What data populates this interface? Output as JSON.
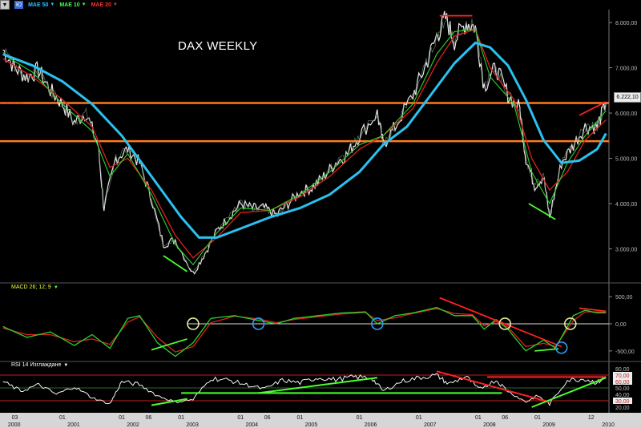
{
  "toolbar": {
    "dropdown_label": "▼",
    "chart_type_label": "Ю",
    "indicators": [
      {
        "name": "MAE 50",
        "color": "#28c4ff"
      },
      {
        "name": "MAE 10",
        "color": "#4cff4c"
      },
      {
        "name": "MAE 20",
        "color": "#ff2a2a"
      }
    ]
  },
  "colors": {
    "background": "#000000",
    "price": "#e8e8e8",
    "ma50": "#2cc0f0",
    "ma10": "#2bd42b",
    "ma20": "#e02020",
    "support": "#ff7a1a",
    "trend_green": "#4cff30",
    "trend_red": "#ff2222",
    "circle_yellow": "#e8e8a0",
    "circle_blue": "#2d9cf0"
  },
  "chart_data": {
    "type": "line",
    "title": "DAX WEEKLY",
    "last_price_label": "6.222,10",
    "price_ticks": [
      "8.000,00",
      "7.000,00",
      "6.000,00",
      "5.000,00",
      "4.000,00",
      "3.000,00"
    ],
    "price_ylim": [
      2300,
      8250
    ],
    "price_path": [
      [
        2000.0,
        7400
      ],
      [
        2000.2,
        7000
      ],
      [
        2000.4,
        6800
      ],
      [
        2000.6,
        6950
      ],
      [
        2000.8,
        6500
      ],
      [
        2001.0,
        6200
      ],
      [
        2001.2,
        5800
      ],
      [
        2001.4,
        6000
      ],
      [
        2001.6,
        5300
      ],
      [
        2001.7,
        3900
      ],
      [
        2001.9,
        5000
      ],
      [
        2002.1,
        5200
      ],
      [
        2002.3,
        4900
      ],
      [
        2002.5,
        4100
      ],
      [
        2002.7,
        3100
      ],
      [
        2002.9,
        3200
      ],
      [
        2003.2,
        2450
      ],
      [
        2003.4,
        2900
      ],
      [
        2003.6,
        3400
      ],
      [
        2003.8,
        3700
      ],
      [
        2004.0,
        4000
      ],
      [
        2004.2,
        3900
      ],
      [
        2004.4,
        3900
      ],
      [
        2004.6,
        3750
      ],
      [
        2004.8,
        4000
      ],
      [
        2005.0,
        4250
      ],
      [
        2005.2,
        4350
      ],
      [
        2005.4,
        4600
      ],
      [
        2005.6,
        4900
      ],
      [
        2005.8,
        5100
      ],
      [
        2006.0,
        5500
      ],
      [
        2006.3,
        6000
      ],
      [
        2006.4,
        5300
      ],
      [
        2006.6,
        5700
      ],
      [
        2006.9,
        6400
      ],
      [
        2007.1,
        7000
      ],
      [
        2007.3,
        7700
      ],
      [
        2007.45,
        8100
      ],
      [
        2007.6,
        7600
      ],
      [
        2007.8,
        8000
      ],
      [
        2007.95,
        7900
      ],
      [
        2008.1,
        6600
      ],
      [
        2008.3,
        7000
      ],
      [
        2008.5,
        6400
      ],
      [
        2008.7,
        6100
      ],
      [
        2008.8,
        5000
      ],
      [
        2008.95,
        4400
      ],
      [
        2009.1,
        4600
      ],
      [
        2009.2,
        3700
      ],
      [
        2009.4,
        4900
      ],
      [
        2009.6,
        5300
      ],
      [
        2009.8,
        5700
      ],
      [
        2010.0,
        5700
      ],
      [
        2010.15,
        6222
      ]
    ],
    "ma50_path": [
      [
        2000.0,
        7300
      ],
      [
        2000.5,
        7050
      ],
      [
        2001.0,
        6700
      ],
      [
        2001.5,
        6200
      ],
      [
        2002.0,
        5500
      ],
      [
        2002.5,
        4600
      ],
      [
        2003.0,
        3700
      ],
      [
        2003.3,
        3250
      ],
      [
        2003.6,
        3250
      ],
      [
        2004.0,
        3450
      ],
      [
        2004.5,
        3700
      ],
      [
        2005.0,
        3900
      ],
      [
        2005.5,
        4200
      ],
      [
        2006.0,
        4700
      ],
      [
        2006.4,
        5300
      ],
      [
        2006.8,
        5700
      ],
      [
        2007.2,
        6400
      ],
      [
        2007.6,
        7100
      ],
      [
        2007.95,
        7550
      ],
      [
        2008.2,
        7450
      ],
      [
        2008.5,
        7050
      ],
      [
        2008.8,
        6300
      ],
      [
        2009.1,
        5400
      ],
      [
        2009.4,
        4900
      ],
      [
        2009.7,
        4950
      ],
      [
        2010.0,
        5200
      ],
      [
        2010.15,
        5550
      ]
    ],
    "ma20_path": [
      [
        2000.0,
        7200
      ],
      [
        2000.5,
        6800
      ],
      [
        2001.0,
        6300
      ],
      [
        2001.5,
        5700
      ],
      [
        2001.8,
        4800
      ],
      [
        2002.1,
        5000
      ],
      [
        2002.5,
        4300
      ],
      [
        2002.9,
        3300
      ],
      [
        2003.2,
        2800
      ],
      [
        2003.6,
        3250
      ],
      [
        2004.0,
        3800
      ],
      [
        2004.5,
        3850
      ],
      [
        2005.0,
        4150
      ],
      [
        2005.5,
        4600
      ],
      [
        2006.0,
        5200
      ],
      [
        2006.4,
        5500
      ],
      [
        2006.9,
        6100
      ],
      [
        2007.3,
        7100
      ],
      [
        2007.6,
        7700
      ],
      [
        2007.95,
        7850
      ],
      [
        2008.2,
        7000
      ],
      [
        2008.6,
        6300
      ],
      [
        2008.9,
        5000
      ],
      [
        2009.2,
        4300
      ],
      [
        2009.5,
        4700
      ],
      [
        2009.8,
        5400
      ],
      [
        2010.15,
        5850
      ]
    ],
    "ma10_path": [
      [
        2000.0,
        7300
      ],
      [
        2000.5,
        6900
      ],
      [
        2001.0,
        6200
      ],
      [
        2001.5,
        5600
      ],
      [
        2001.8,
        4600
      ],
      [
        2002.1,
        5100
      ],
      [
        2002.5,
        4200
      ],
      [
        2002.9,
        3100
      ],
      [
        2003.2,
        2650
      ],
      [
        2003.6,
        3350
      ],
      [
        2004.0,
        3900
      ],
      [
        2004.5,
        3850
      ],
      [
        2005.0,
        4200
      ],
      [
        2005.5,
        4700
      ],
      [
        2006.0,
        5300
      ],
      [
        2006.4,
        5500
      ],
      [
        2006.9,
        6200
      ],
      [
        2007.3,
        7300
      ],
      [
        2007.6,
        7800
      ],
      [
        2007.95,
        7850
      ],
      [
        2008.2,
        6800
      ],
      [
        2008.6,
        6200
      ],
      [
        2008.9,
        4700
      ],
      [
        2009.2,
        4000
      ],
      [
        2009.5,
        4900
      ],
      [
        2009.8,
        5500
      ],
      [
        2010.15,
        6050
      ]
    ],
    "support_lines": [
      {
        "value": 6222,
        "x0": 1999.95,
        "x1": 2010.2
      },
      {
        "value": 5380,
        "x0": 1999.95,
        "x1": 2010.2
      }
    ],
    "price_trendlines": [
      {
        "color": "trend_green",
        "points": [
          [
            2002.7,
            2850
          ],
          [
            2003.1,
            2500
          ]
        ]
      },
      {
        "color": "trend_red",
        "points": [
          [
            2007.35,
            8150
          ],
          [
            2007.9,
            8150
          ]
        ]
      },
      {
        "color": "trend_green",
        "points": [
          [
            2008.85,
            4000
          ],
          [
            2009.3,
            3650
          ]
        ]
      },
      {
        "color": "trend_red",
        "points": [
          [
            2009.7,
            5950
          ],
          [
            2010.15,
            6250
          ]
        ]
      }
    ],
    "macd": {
      "label": "MACD 26; 12; 9",
      "ticks": [
        "500,00",
        "0,00",
        "-500,00"
      ],
      "ylim": [
        -650,
        620
      ],
      "macd_path": [
        [
          2000.0,
          -50
        ],
        [
          2000.4,
          -250
        ],
        [
          2000.8,
          -150
        ],
        [
          2001.2,
          -400
        ],
        [
          2001.5,
          -200
        ],
        [
          2001.8,
          -450
        ],
        [
          2002.1,
          100
        ],
        [
          2002.3,
          150
        ],
        [
          2002.6,
          -350
        ],
        [
          2002.9,
          -600
        ],
        [
          2003.2,
          -350
        ],
        [
          2003.5,
          100
        ],
        [
          2003.9,
          150
        ],
        [
          2004.3,
          60
        ],
        [
          2004.6,
          0
        ],
        [
          2004.9,
          100
        ],
        [
          2005.3,
          150
        ],
        [
          2005.7,
          200
        ],
        [
          2006.1,
          220
        ],
        [
          2006.3,
          0
        ],
        [
          2006.6,
          150
        ],
        [
          2006.9,
          200
        ],
        [
          2007.3,
          300
        ],
        [
          2007.6,
          150
        ],
        [
          2007.9,
          150
        ],
        [
          2008.1,
          -100
        ],
        [
          2008.3,
          80
        ],
        [
          2008.5,
          -100
        ],
        [
          2008.8,
          -500
        ],
        [
          2009.1,
          -300
        ],
        [
          2009.3,
          -450
        ],
        [
          2009.6,
          150
        ],
        [
          2009.8,
          250
        ],
        [
          2010.0,
          200
        ],
        [
          2010.15,
          200
        ]
      ],
      "signal_path": [
        [
          2000.0,
          -80
        ],
        [
          2000.4,
          -200
        ],
        [
          2000.8,
          -200
        ],
        [
          2001.2,
          -330
        ],
        [
          2001.5,
          -280
        ],
        [
          2001.8,
          -380
        ],
        [
          2002.1,
          30
        ],
        [
          2002.3,
          130
        ],
        [
          2002.6,
          -250
        ],
        [
          2002.9,
          -520
        ],
        [
          2003.2,
          -420
        ],
        [
          2003.5,
          20
        ],
        [
          2003.9,
          140
        ],
        [
          2004.3,
          90
        ],
        [
          2004.6,
          20
        ],
        [
          2004.9,
          80
        ],
        [
          2005.3,
          130
        ],
        [
          2005.7,
          180
        ],
        [
          2006.1,
          210
        ],
        [
          2006.3,
          60
        ],
        [
          2006.6,
          110
        ],
        [
          2006.9,
          190
        ],
        [
          2007.3,
          280
        ],
        [
          2007.6,
          190
        ],
        [
          2007.9,
          170
        ],
        [
          2008.1,
          -40
        ],
        [
          2008.3,
          40
        ],
        [
          2008.5,
          -60
        ],
        [
          2008.8,
          -420
        ],
        [
          2009.1,
          -360
        ],
        [
          2009.3,
          -420
        ],
        [
          2009.6,
          60
        ],
        [
          2009.8,
          220
        ],
        [
          2010.0,
          220
        ],
        [
          2010.15,
          210
        ]
      ],
      "circles": [
        {
          "x": 2003.2,
          "y": 0,
          "color": "circle_yellow"
        },
        {
          "x": 2004.3,
          "y": 0,
          "color": "circle_blue"
        },
        {
          "x": 2006.3,
          "y": 0,
          "color": "circle_blue"
        },
        {
          "x": 2008.45,
          "y": 0,
          "color": "circle_yellow"
        },
        {
          "x": 2009.55,
          "y": 0,
          "color": "circle_yellow"
        },
        {
          "x": 2009.4,
          "y": -440,
          "color": "circle_blue"
        }
      ],
      "trendlines": [
        {
          "color": "trend_green",
          "points": [
            [
              2002.5,
              -480
            ],
            [
              2003.1,
              -280
            ]
          ]
        },
        {
          "color": "trend_red",
          "points": [
            [
              2007.35,
              480
            ],
            [
              2009.4,
              -420
            ]
          ]
        },
        {
          "color": "trend_green",
          "points": [
            [
              2008.95,
              -500
            ],
            [
              2009.35,
              -460
            ]
          ]
        },
        {
          "color": "trend_red",
          "points": [
            [
              2009.7,
              290
            ],
            [
              2010.15,
              230
            ]
          ]
        }
      ]
    },
    "rsi": {
      "label": "RSI 14 Изглаждане",
      "ticks": [
        "80,00",
        "70,00",
        "60,00",
        "50,00",
        "40,00",
        "30,00",
        "20,00"
      ],
      "ylim": [
        15,
        85
      ],
      "levels": [
        70,
        30
      ],
      "path": [
        [
          2000.0,
          60
        ],
        [
          2000.3,
          45
        ],
        [
          2000.6,
          55
        ],
        [
          2000.9,
          40
        ],
        [
          2001.2,
          52
        ],
        [
          2001.5,
          35
        ],
        [
          2001.8,
          25
        ],
        [
          2002.0,
          60
        ],
        [
          2002.3,
          55
        ],
        [
          2002.6,
          38
        ],
        [
          2002.9,
          28
        ],
        [
          2003.2,
          32
        ],
        [
          2003.5,
          65
        ],
        [
          2003.8,
          62
        ],
        [
          2004.1,
          55
        ],
        [
          2004.4,
          48
        ],
        [
          2004.7,
          62
        ],
        [
          2005.0,
          58
        ],
        [
          2005.3,
          66
        ],
        [
          2005.6,
          63
        ],
        [
          2005.9,
          67
        ],
        [
          2006.2,
          66
        ],
        [
          2006.4,
          45
        ],
        [
          2006.7,
          60
        ],
        [
          2007.0,
          66
        ],
        [
          2007.3,
          70
        ],
        [
          2007.5,
          56
        ],
        [
          2007.8,
          68
        ],
        [
          2008.0,
          48
        ],
        [
          2008.3,
          62
        ],
        [
          2008.5,
          45
        ],
        [
          2008.8,
          28
        ],
        [
          2009.0,
          38
        ],
        [
          2009.2,
          25
        ],
        [
          2009.5,
          62
        ],
        [
          2009.8,
          64
        ],
        [
          2010.0,
          58
        ],
        [
          2010.15,
          68
        ]
      ],
      "trendlines": [
        {
          "color": "trend_green",
          "points": [
            [
              2002.5,
              23
            ],
            [
              2003.1,
              33
            ]
          ]
        },
        {
          "color": "trend_green",
          "points": [
            [
              2003.0,
              42
            ],
            [
              2008.4,
              42
            ]
          ]
        },
        {
          "color": "trend_green",
          "points": [
            [
              2004.3,
              42
            ],
            [
              2006.3,
              66
            ]
          ]
        },
        {
          "color": "trend_red",
          "points": [
            [
              2007.3,
              76
            ],
            [
              2009.2,
              28
            ]
          ]
        },
        {
          "color": "trend_red",
          "points": [
            [
              2008.15,
              67
            ],
            [
              2010.15,
              67
            ]
          ]
        },
        {
          "color": "trend_green",
          "points": [
            [
              2008.9,
              20
            ],
            [
              2010.15,
              66
            ]
          ]
        }
      ]
    },
    "x_axis": {
      "xlim": [
        1999.95,
        2010.2
      ],
      "year_labels": [
        {
          "x": 2000.0,
          "label": "2000"
        },
        {
          "x": 2001.0,
          "label": "2001"
        },
        {
          "x": 2002.0,
          "label": "2002"
        },
        {
          "x": 2003.0,
          "label": "2003"
        },
        {
          "x": 2004.0,
          "label": "2004"
        },
        {
          "x": 2005.0,
          "label": "2005"
        },
        {
          "x": 2006.0,
          "label": "2006"
        },
        {
          "x": 2007.0,
          "label": "2007"
        },
        {
          "x": 2008.0,
          "label": "2008"
        },
        {
          "x": 2009.0,
          "label": "2009"
        },
        {
          "x": 2010.0,
          "label": "2010"
        }
      ],
      "month_labels": [
        {
          "x": 2000.2,
          "label": "03"
        },
        {
          "x": 2001.0,
          "label": "01"
        },
        {
          "x": 2002.0,
          "label": "01"
        },
        {
          "x": 2002.45,
          "label": "06"
        },
        {
          "x": 2003.0,
          "label": "01"
        },
        {
          "x": 2004.0,
          "label": "01"
        },
        {
          "x": 2004.45,
          "label": "06"
        },
        {
          "x": 2005.0,
          "label": "01"
        },
        {
          "x": 2006.0,
          "label": "01"
        },
        {
          "x": 2007.0,
          "label": "01"
        },
        {
          "x": 2008.0,
          "label": "01"
        },
        {
          "x": 2008.45,
          "label": "06"
        },
        {
          "x": 2009.0,
          "label": "01"
        },
        {
          "x": 2009.9,
          "label": "12"
        }
      ]
    }
  }
}
